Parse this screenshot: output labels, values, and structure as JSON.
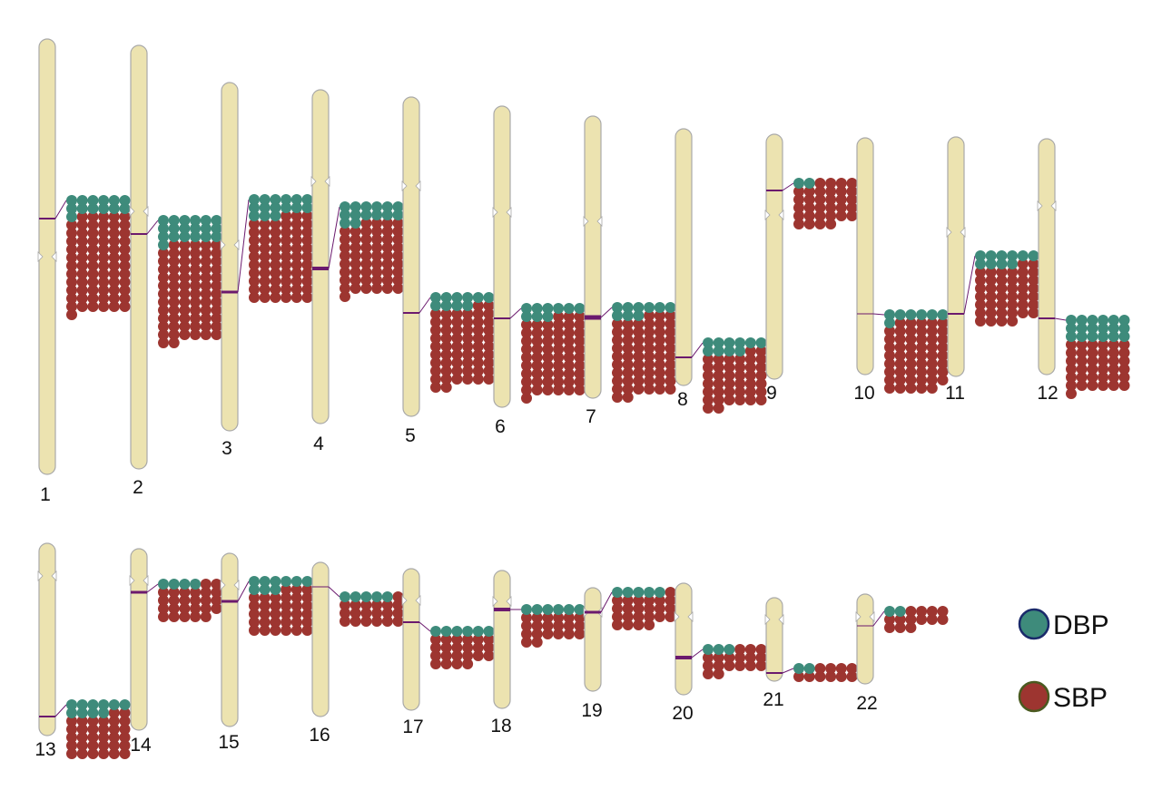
{
  "colors": {
    "chromosome": "#ece3b0",
    "chromosome_outline": "#a9a9a9",
    "marker": "#6b1a6e",
    "dbp": "#3e8b7b",
    "sbp": "#9d3530"
  },
  "legend": [
    {
      "label": "DBP",
      "color": "#3e8b7b"
    },
    {
      "label": "SBP",
      "color": "#9d3530"
    }
  ],
  "chromosomes": [
    {
      "label": "1",
      "dbp": 13,
      "sbp": 72
    },
    {
      "label": "2",
      "dbp": 19,
      "sbp": 73
    },
    {
      "label": "3",
      "dbp": 15,
      "sbp": 63
    },
    {
      "label": "4",
      "dbp": 14,
      "sbp": 53
    },
    {
      "label": "5",
      "dbp": 10,
      "sbp": 58
    },
    {
      "label": "6",
      "dbp": 9,
      "sbp": 58
    },
    {
      "label": "7",
      "dbp": 9,
      "sbp": 59
    },
    {
      "label": "8",
      "dbp": 10,
      "sbp": 40
    },
    {
      "label": "9",
      "dbp": 2,
      "sbp": 32
    },
    {
      "label": "10",
      "dbp": 7,
      "sbp": 52
    },
    {
      "label": "11",
      "dbp": 10,
      "sbp": 42
    },
    {
      "label": "12",
      "dbp": 18,
      "sbp": 37
    },
    {
      "label": "13",
      "dbp": 10,
      "sbp": 32
    },
    {
      "label": "14",
      "dbp": 4,
      "sbp": 25
    },
    {
      "label": "15",
      "dbp": 9,
      "sbp": 33
    },
    {
      "label": "16",
      "dbp": 5,
      "sbp": 19
    },
    {
      "label": "17",
      "dbp": 6,
      "sbp": 22
    },
    {
      "label": "18",
      "dbp": 6,
      "sbp": 20
    },
    {
      "label": "19",
      "dbp": 5,
      "sbp": 23
    },
    {
      "label": "20",
      "dbp": 3,
      "sbp": 17
    },
    {
      "label": "21",
      "dbp": 2,
      "sbp": 10
    },
    {
      "label": "22",
      "dbp": 2,
      "sbp": 13
    }
  ]
}
